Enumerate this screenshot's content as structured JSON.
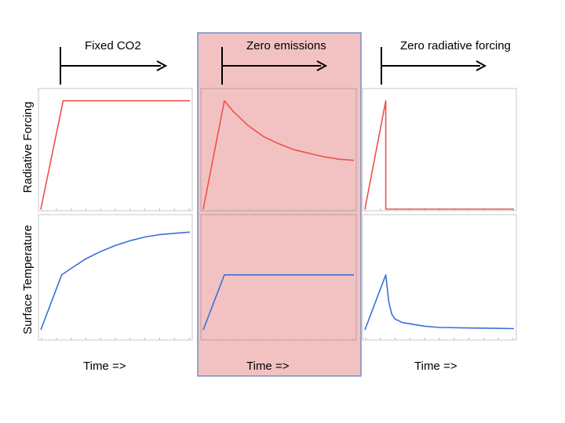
{
  "scenarios": [
    {
      "title": "Fixed CO2",
      "time_label": "Time =>",
      "highlighted": false
    },
    {
      "title": "Zero emissions",
      "time_label": "Time =>",
      "highlighted": true
    },
    {
      "title": "Zero radiative forcing",
      "time_label": "Time =>",
      "highlighted": false
    }
  ],
  "row_labels": [
    "Radiative Forcing",
    "Surface Temperature"
  ],
  "colors": {
    "forcing": "#f0504a",
    "temperature": "#3a6fd8",
    "highlight_fill": "#f2c2c2",
    "highlight_border": "#6f8fc8",
    "arrow": "#000000"
  },
  "chart_data": [
    {
      "type": "line",
      "scenario": "Fixed CO2",
      "row": "Radiative Forcing",
      "x": [
        0,
        0.15,
        0.3,
        0.5,
        0.75,
        1.0
      ],
      "y": [
        0,
        0.91,
        0.91,
        0.91,
        0.91,
        0.91
      ],
      "xlim": [
        0,
        1
      ],
      "ylim": [
        0,
        1
      ]
    },
    {
      "type": "line",
      "scenario": "Zero emissions",
      "row": "Radiative Forcing",
      "x": [
        0,
        0.14,
        0.2,
        0.3,
        0.4,
        0.5,
        0.6,
        0.7,
        0.8,
        0.9,
        1.0
      ],
      "y": [
        0,
        0.91,
        0.82,
        0.7,
        0.61,
        0.55,
        0.5,
        0.47,
        0.44,
        0.42,
        0.41
      ],
      "xlim": [
        0,
        1
      ],
      "ylim": [
        0,
        1
      ]
    },
    {
      "type": "line",
      "scenario": "Zero radiative forcing",
      "row": "Radiative Forcing",
      "x": [
        0,
        0.14,
        0.14,
        1.0
      ],
      "y": [
        0,
        0.91,
        0,
        0
      ],
      "xlim": [
        0,
        1
      ],
      "ylim": [
        0,
        1
      ]
    },
    {
      "type": "line",
      "scenario": "Fixed CO2",
      "row": "Surface Temperature",
      "x": [
        0,
        0.14,
        0.2,
        0.3,
        0.4,
        0.5,
        0.6,
        0.7,
        0.8,
        0.9,
        1.0
      ],
      "y": [
        0.07,
        0.52,
        0.57,
        0.65,
        0.71,
        0.76,
        0.8,
        0.83,
        0.85,
        0.86,
        0.87
      ],
      "xlim": [
        0,
        1
      ],
      "ylim": [
        0,
        1
      ]
    },
    {
      "type": "line",
      "scenario": "Zero emissions",
      "row": "Surface Temperature",
      "x": [
        0,
        0.14,
        0.3,
        0.5,
        0.75,
        1.0
      ],
      "y": [
        0.07,
        0.52,
        0.52,
        0.52,
        0.52,
        0.52
      ],
      "xlim": [
        0,
        1
      ],
      "ylim": [
        0,
        1
      ]
    },
    {
      "type": "line",
      "scenario": "Zero radiative forcing",
      "row": "Surface Temperature",
      "x": [
        0,
        0.14,
        0.16,
        0.18,
        0.2,
        0.25,
        0.3,
        0.4,
        0.5,
        0.7,
        1.0
      ],
      "y": [
        0.07,
        0.52,
        0.3,
        0.2,
        0.16,
        0.13,
        0.12,
        0.1,
        0.09,
        0.085,
        0.08
      ],
      "xlim": [
        0,
        1
      ],
      "ylim": [
        0,
        1
      ]
    }
  ]
}
